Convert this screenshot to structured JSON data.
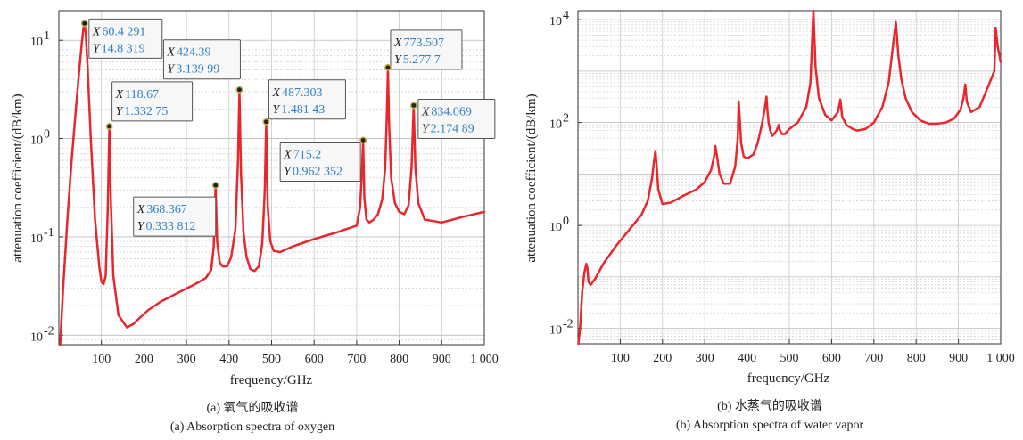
{
  "chart_data": [
    {
      "type": "line",
      "scale": "log-y",
      "xlabel": "frequency/GHz",
      "ylabel": "attenuation coefficient/(dB/km)",
      "xlim": [
        0,
        1000
      ],
      "ylim": [
        0.008,
        20
      ],
      "xticks": [
        100,
        200,
        300,
        400,
        500,
        600,
        700,
        800,
        900,
        1000
      ],
      "xtick_labels": [
        "100",
        "200",
        "300",
        "400",
        "500",
        "600",
        "700",
        "800",
        "900",
        "1 000"
      ],
      "yticks": [
        0.01,
        0.1,
        1,
        10
      ],
      "ytick_labels": [
        "10",
        "10",
        "10",
        "10"
      ],
      "ytick_exponents": [
        "-2",
        "-1",
        "0",
        "1"
      ],
      "grid": true,
      "series_color": "#e8262b",
      "series": [
        {
          "x": [
            3,
            10,
            20,
            30,
            40,
            48,
            54,
            58,
            60.4,
            63,
            67,
            75,
            85,
            95,
            100,
            105,
            110,
            115,
            118.67,
            122,
            128,
            140,
            160,
            175,
            190,
            210,
            240,
            280,
            320,
            345,
            358,
            364,
            368.367,
            372,
            378,
            385,
            395,
            405,
            415,
            421,
            424.39,
            428,
            434,
            441,
            450,
            460,
            470,
            478,
            484,
            487.303,
            491,
            497,
            505,
            520,
            550,
            600,
            650,
            700,
            708,
            712,
            715.2,
            718,
            723,
            730,
            740,
            750,
            760,
            767,
            771,
            773.507,
            776,
            781,
            790,
            800,
            812,
            822,
            829,
            834.069,
            838,
            845,
            860,
            900,
            950,
            1000
          ],
          "y": [
            0.008,
            0.03,
            0.15,
            0.6,
            2.0,
            5.0,
            9.5,
            13.5,
            14.83,
            12.0,
            6.0,
            1.0,
            0.15,
            0.05,
            0.035,
            0.033,
            0.04,
            0.2,
            1.33,
            0.25,
            0.04,
            0.016,
            0.012,
            0.013,
            0.015,
            0.018,
            0.022,
            0.027,
            0.033,
            0.038,
            0.046,
            0.08,
            0.334,
            0.09,
            0.055,
            0.05,
            0.05,
            0.062,
            0.12,
            0.6,
            3.14,
            0.45,
            0.11,
            0.063,
            0.047,
            0.045,
            0.05,
            0.085,
            0.3,
            1.48,
            0.2,
            0.09,
            0.072,
            0.07,
            0.08,
            0.095,
            0.11,
            0.13,
            0.2,
            0.42,
            0.962,
            0.25,
            0.15,
            0.14,
            0.15,
            0.17,
            0.24,
            0.5,
            1.8,
            5.28,
            1.5,
            0.4,
            0.22,
            0.18,
            0.17,
            0.21,
            0.5,
            2.17,
            0.5,
            0.22,
            0.15,
            0.14,
            0.16,
            0.18
          ]
        }
      ],
      "datatips": [
        {
          "x": 60.4,
          "y": 14.83,
          "x_text": "60.4 291",
          "y_text": "14.8 319"
        },
        {
          "x": 118.67,
          "y": 1.33,
          "x_text": "118.67",
          "y_text": "1.332 75"
        },
        {
          "x": 424.39,
          "y": 3.14,
          "x_text": "424.39",
          "y_text": "3.139 99"
        },
        {
          "x": 487.303,
          "y": 1.48,
          "x_text": "487.303",
          "y_text": "1.481 43"
        },
        {
          "x": 773.507,
          "y": 5.28,
          "x_text": "773.507",
          "y_text": "5.277 7"
        },
        {
          "x": 834.069,
          "y": 2.17,
          "x_text": "834.069",
          "y_text": "2.174 89"
        },
        {
          "x": 715.2,
          "y": 0.962,
          "x_text": "715.2",
          "y_text": "0.962 352"
        },
        {
          "x": 368.367,
          "y": 0.334,
          "x_text": "368.367",
          "y_text": "0.333 812"
        }
      ],
      "caption_cn": "(a) 氧气的吸收谱",
      "caption_en": "(a) Absorption spectra of oxygen"
    },
    {
      "type": "line",
      "scale": "log-y",
      "xlabel": "frequency/GHz",
      "ylabel": "attenuation coefficient/(dB/km)",
      "xlim": [
        0,
        1000
      ],
      "ylim": [
        0.005,
        15000
      ],
      "xticks": [
        100,
        200,
        300,
        400,
        500,
        600,
        700,
        800,
        900,
        1000
      ],
      "xtick_labels": [
        "100",
        "200",
        "300",
        "400",
        "500",
        "600",
        "700",
        "800",
        "900",
        "1 000"
      ],
      "yticks": [
        0.01,
        1,
        100,
        10000
      ],
      "ytick_labels": [
        "10",
        "10",
        "10",
        "10"
      ],
      "ytick_exponents": [
        "-2",
        "0",
        "2",
        "4"
      ],
      "grid": true,
      "series_color": "#e8262b",
      "series": [
        {
          "x": [
            1,
            5,
            10,
            15,
            20,
            22.2,
            25,
            30,
            40,
            60,
            90,
            120,
            150,
            165,
            175,
            180,
            183.3,
            186,
            190,
            200,
            220,
            250,
            280,
            300,
            315,
            322,
            325,
            329,
            335,
            345,
            360,
            372,
            378,
            380.2,
            382,
            386,
            392,
            400,
            415,
            425,
            435,
            442,
            446,
            448,
            451,
            455,
            460,
            470,
            474.7,
            478,
            482,
            490,
            500,
            520,
            540,
            550,
            556.9,
            562,
            570,
            585,
            600,
            615,
            620.7,
            625,
            635,
            650,
            660,
            680,
            700,
            720,
            735,
            745,
            752,
            758,
            765,
            775,
            790,
            810,
            830,
            850,
            870,
            890,
            905,
            912,
            916.2,
            920,
            930,
            950,
            970,
            985,
            988,
            993,
            1000
          ],
          "y": [
            0.005,
            0.01,
            0.05,
            0.12,
            0.18,
            0.15,
            0.08,
            0.07,
            0.09,
            0.18,
            0.4,
            0.8,
            1.6,
            3.0,
            8.0,
            18.0,
            28.0,
            15.0,
            5.0,
            2.6,
            2.8,
            3.8,
            5.0,
            7.0,
            12.0,
            22.0,
            35.0,
            22.0,
            10.0,
            6.5,
            6.5,
            14.0,
            50.0,
            260.0,
            150.0,
            40.0,
            22.0,
            20.0,
            24.0,
            40.0,
            90.0,
            190.0,
            320.0,
            180.0,
            100.0,
            70.0,
            55.0,
            70.0,
            90.0,
            70.0,
            60.0,
            60.0,
            75.0,
            100.0,
            200.0,
            600.0,
            15000.0,
            1200.0,
            300.0,
            140.0,
            110.0,
            160.0,
            280.0,
            130.0,
            90.0,
            75.0,
            70.0,
            75.0,
            100.0,
            200.0,
            600.0,
            3000.0,
            9000.0,
            2000.0,
            700.0,
            300.0,
            160.0,
            110.0,
            95.0,
            95.0,
            100.0,
            120.0,
            180.0,
            300.0,
            550.0,
            250.0,
            160.0,
            200.0,
            500.0,
            1000.0,
            7000.0,
            3000.0,
            1500.0
          ]
        }
      ],
      "caption_cn": "(b) 水蒸气的吸收谱",
      "caption_en": "(b) Absorption spectra of water vapor"
    }
  ]
}
